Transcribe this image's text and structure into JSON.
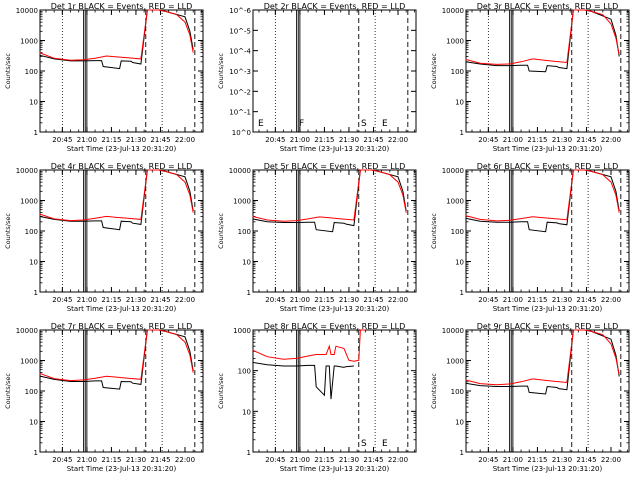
{
  "chart_data": [
    {
      "type": "line",
      "title": "Det 1r BLACK = Events, RED = LLD",
      "xlabel": "Start Time (23-Jul-13 20:31:20)",
      "ylabel": "Counts/sec",
      "scale": "log",
      "ylim": [
        1,
        10000
      ],
      "y_ticks": [
        "1",
        "10",
        "100",
        "1000",
        "10000"
      ],
      "x_ticks": [
        "20:45",
        "21:00",
        "21:15",
        "21:30",
        "21:45",
        "22:00"
      ],
      "markers": [],
      "series": [
        {
          "color": "#000000",
          "x": [
            "20:31",
            "20:40",
            "20:50",
            "20:58",
            "21:05",
            "21:09",
            "21:10",
            "21:20",
            "21:21",
            "21:27",
            "21:28",
            "21:33",
            "21:37",
            "21:40",
            "21:44",
            "21:48",
            "22:00",
            "22:03",
            "22:05"
          ],
          "y": [
            330,
            250,
            215,
            215,
            220,
            220,
            140,
            120,
            215,
            210,
            190,
            170,
            10000,
            12000,
            12000,
            9000,
            6000,
            2000,
            500
          ]
        },
        {
          "color": "#ff0000",
          "x": [
            "20:31",
            "20:40",
            "20:50",
            "20:58",
            "21:05",
            "21:12",
            "21:18",
            "21:25",
            "21:33",
            "21:37",
            "21:40",
            "21:44",
            "21:48",
            "21:55",
            "22:00",
            "22:03",
            "22:05"
          ],
          "y": [
            400,
            260,
            225,
            235,
            260,
            310,
            290,
            270,
            250,
            10000,
            12000,
            12000,
            9000,
            7000,
            4000,
            1500,
            400
          ]
        }
      ]
    },
    {
      "type": "line",
      "title": "Det 2r BLACK = Events, RED = LLD",
      "xlabel": "Start Time (23-Jul-13 20:31:20)",
      "ylabel": "Counts/sec",
      "scale": "log",
      "ylim": [
        1,
        1e-06
      ],
      "y_ticks": [
        "10^0",
        "10^-1",
        "10^-2",
        "10^-3",
        "10^-4",
        "10^-5",
        "10^-6"
      ],
      "x_ticks": [
        "20:45",
        "21:00",
        "21:15",
        "21:30",
        "21:45",
        "22:00"
      ],
      "markers": [
        "E",
        "F",
        "S",
        "E"
      ],
      "series": []
    },
    {
      "type": "line",
      "title": "Det 3r BLACK = Events, RED = LLD",
      "xlabel": "Start Time (23-Jul-13 20:31:20)",
      "ylabel": "Counts/sec",
      "scale": "log",
      "ylim": [
        1,
        10000
      ],
      "y_ticks": [
        "1",
        "10",
        "100",
        "1000",
        "10000"
      ],
      "x_ticks": [
        "20:45",
        "21:00",
        "21:15",
        "21:30",
        "21:45",
        "22:00"
      ],
      "markers": [],
      "series": [
        {
          "color": "#000000",
          "x": [
            "20:31",
            "20:40",
            "20:50",
            "20:58",
            "21:05",
            "21:09",
            "21:10",
            "21:20",
            "21:21",
            "21:27",
            "21:28",
            "21:33",
            "21:37",
            "21:40",
            "21:44",
            "21:48",
            "22:00",
            "22:03",
            "22:05"
          ],
          "y": [
            200,
            170,
            150,
            150,
            155,
            155,
            100,
            95,
            150,
            140,
            130,
            120,
            10000,
            12000,
            12000,
            9000,
            5000,
            1500,
            300
          ]
        },
        {
          "color": "#ff0000",
          "x": [
            "20:31",
            "20:40",
            "20:50",
            "20:58",
            "21:05",
            "21:12",
            "21:18",
            "21:25",
            "21:33",
            "21:37",
            "21:40",
            "21:44",
            "21:48",
            "21:55",
            "22:00",
            "22:03",
            "22:05"
          ],
          "y": [
            240,
            180,
            165,
            170,
            200,
            250,
            230,
            210,
            190,
            10000,
            12000,
            12000,
            9000,
            7000,
            3500,
            1200,
            350
          ]
        }
      ]
    },
    {
      "type": "line",
      "title": "Det 4r BLACK = Events, RED = LLD",
      "xlabel": "Start Time (23-Jul-13 20:31:20)",
      "ylabel": "Counts/sec",
      "scale": "log",
      "ylim": [
        1,
        10000
      ],
      "y_ticks": [
        "1",
        "10",
        "100",
        "1000",
        "10000"
      ],
      "x_ticks": [
        "20:45",
        "21:00",
        "21:15",
        "21:30",
        "21:45",
        "22:00"
      ],
      "markers": [],
      "series": [
        {
          "color": "#000000",
          "x": [
            "20:31",
            "20:40",
            "20:50",
            "20:58",
            "21:05",
            "21:09",
            "21:10",
            "21:20",
            "21:21",
            "21:27",
            "21:28",
            "21:33",
            "21:37",
            "21:40",
            "21:44",
            "21:48",
            "22:00",
            "22:03",
            "22:05"
          ],
          "y": [
            300,
            240,
            210,
            210,
            215,
            215,
            130,
            110,
            210,
            200,
            180,
            165,
            10000,
            12000,
            12000,
            9000,
            6000,
            2000,
            450
          ]
        },
        {
          "color": "#ff0000",
          "x": [
            "20:31",
            "20:40",
            "20:50",
            "20:58",
            "21:05",
            "21:12",
            "21:18",
            "21:25",
            "21:33",
            "21:37",
            "21:40",
            "21:44",
            "21:48",
            "21:55",
            "22:00",
            "22:03",
            "22:05"
          ],
          "y": [
            360,
            250,
            220,
            230,
            260,
            300,
            280,
            260,
            240,
            10000,
            12000,
            12000,
            9000,
            7000,
            4000,
            1500,
            400
          ]
        }
      ]
    },
    {
      "type": "line",
      "title": "Det 5r BLACK = Events, RED = LLD",
      "xlabel": "Start Time (23-Jul-13 20:31:20)",
      "ylabel": "Counts/sec",
      "scale": "log",
      "ylim": [
        1,
        10000
      ],
      "y_ticks": [
        "1",
        "10",
        "100",
        "1000",
        "10000"
      ],
      "x_ticks": [
        "20:45",
        "21:00",
        "21:15",
        "21:30",
        "21:45",
        "22:00"
      ],
      "markers": [],
      "series": [
        {
          "color": "#000000",
          "x": [
            "20:31",
            "20:40",
            "20:50",
            "20:58",
            "21:05",
            "21:09",
            "21:10",
            "21:20",
            "21:21",
            "21:27",
            "21:28",
            "21:33",
            "21:37",
            "21:40",
            "21:44",
            "21:48",
            "22:00",
            "22:03",
            "22:05"
          ],
          "y": [
            250,
            200,
            190,
            190,
            195,
            195,
            110,
            95,
            190,
            180,
            170,
            150,
            10000,
            12000,
            12000,
            9000,
            6000,
            2000,
            450
          ]
        },
        {
          "color": "#ff0000",
          "x": [
            "20:31",
            "20:40",
            "20:50",
            "20:58",
            "21:05",
            "21:12",
            "21:18",
            "21:25",
            "21:33",
            "21:37",
            "21:40",
            "21:44",
            "21:48",
            "21:55",
            "22:00",
            "22:03",
            "22:05"
          ],
          "y": [
            300,
            230,
            210,
            220,
            250,
            290,
            270,
            250,
            230,
            10000,
            12000,
            12000,
            9000,
            7000,
            4000,
            1500,
            400
          ]
        }
      ]
    },
    {
      "type": "line",
      "title": "Det 6r BLACK = Events, RED = LLD",
      "xlabel": "Start Time (23-Jul-13 20:31:20)",
      "ylabel": "Counts/sec",
      "scale": "log",
      "ylim": [
        1,
        10000
      ],
      "y_ticks": [
        "1",
        "10",
        "100",
        "1000",
        "10000"
      ],
      "x_ticks": [
        "20:45",
        "21:00",
        "21:15",
        "21:30",
        "21:45",
        "22:00"
      ],
      "markers": [],
      "series": [
        {
          "color": "#000000",
          "x": [
            "20:31",
            "20:40",
            "20:50",
            "20:58",
            "21:05",
            "21:09",
            "21:10",
            "21:20",
            "21:21",
            "21:27",
            "21:28",
            "21:33",
            "21:37",
            "21:40",
            "21:44",
            "21:48",
            "22:00",
            "22:03",
            "22:05"
          ],
          "y": [
            260,
            210,
            195,
            195,
            200,
            200,
            110,
            95,
            195,
            185,
            175,
            160,
            10000,
            12000,
            12000,
            9000,
            6000,
            2000,
            450
          ]
        },
        {
          "color": "#ff0000",
          "x": [
            "20:31",
            "20:40",
            "20:50",
            "20:58",
            "21:05",
            "21:12",
            "21:18",
            "21:25",
            "21:33",
            "21:37",
            "21:40",
            "21:44",
            "21:48",
            "21:55",
            "22:00",
            "22:03",
            "22:05"
          ],
          "y": [
            320,
            240,
            215,
            225,
            255,
            295,
            275,
            255,
            235,
            10000,
            12000,
            12000,
            9000,
            7000,
            4000,
            1500,
            400
          ]
        }
      ]
    },
    {
      "type": "line",
      "title": "Det 7r BLACK = Events, RED = LLD",
      "xlabel": "Start Time (23-Jul-13 20:31:20)",
      "ylabel": "Counts/sec",
      "scale": "log",
      "ylim": [
        1,
        10000
      ],
      "y_ticks": [
        "1",
        "10",
        "100",
        "1000",
        "10000"
      ],
      "x_ticks": [
        "20:45",
        "21:00",
        "21:15",
        "21:30",
        "21:45",
        "22:00"
      ],
      "markers": [],
      "series": [
        {
          "color": "#000000",
          "x": [
            "20:31",
            "20:40",
            "20:50",
            "20:58",
            "21:05",
            "21:09",
            "21:10",
            "21:20",
            "21:21",
            "21:27",
            "21:28",
            "21:33",
            "21:37",
            "21:40",
            "21:44",
            "21:48",
            "22:00",
            "22:03",
            "22:05"
          ],
          "y": [
            310,
            240,
            205,
            205,
            215,
            215,
            130,
            115,
            205,
            200,
            180,
            165,
            10000,
            12000,
            12000,
            9000,
            6000,
            2000,
            450
          ]
        },
        {
          "color": "#ff0000",
          "x": [
            "20:31",
            "20:40",
            "20:50",
            "20:58",
            "21:05",
            "21:12",
            "21:18",
            "21:25",
            "21:33",
            "21:37",
            "21:40",
            "21:44",
            "21:48",
            "21:55",
            "22:00",
            "22:03",
            "22:05"
          ],
          "y": [
            380,
            255,
            220,
            232,
            262,
            305,
            285,
            262,
            242,
            10000,
            12000,
            12000,
            9000,
            7000,
            4000,
            1500,
            400
          ]
        }
      ]
    },
    {
      "type": "line",
      "title": "Det 8r BLACK = Events, RED = LLD",
      "xlabel": "Start Time (23-Jul-13 20:31:20)",
      "ylabel": "Counts/sec",
      "scale": "log",
      "ylim": [
        1,
        1000
      ],
      "y_ticks": [
        "1",
        "10",
        "100",
        "1000"
      ],
      "x_ticks": [
        "20:45",
        "21:00",
        "21:15",
        "21:30",
        "21:45",
        "22:00"
      ],
      "markers": [
        "S",
        "E"
      ],
      "series": [
        {
          "color": "#000000",
          "x": [
            "20:31",
            "20:40",
            "20:50",
            "20:58",
            "21:05",
            "21:09",
            "21:10",
            "21:15",
            "21:16",
            "21:18",
            "21:19",
            "21:21",
            "21:22",
            "21:27",
            "21:28",
            "21:33"
          ],
          "y": [
            160,
            140,
            130,
            130,
            135,
            135,
            40,
            25,
            130,
            130,
            20,
            130,
            130,
            120,
            125,
            130
          ]
        },
        {
          "color": "#ff0000",
          "x": [
            "20:31",
            "20:40",
            "20:50",
            "20:58",
            "21:05",
            "21:10",
            "21:16",
            "21:18",
            "21:19",
            "21:21",
            "21:22",
            "21:27",
            "21:30",
            "21:33",
            "21:36",
            "21:37",
            "21:40"
          ],
          "y": [
            320,
            220,
            190,
            200,
            230,
            250,
            250,
            400,
            250,
            250,
            400,
            350,
            180,
            170,
            180,
            1000,
            1200
          ]
        }
      ]
    },
    {
      "type": "line",
      "title": "Det 9r BLACK = Events, RED = LLD",
      "xlabel": "Start Time (23-Jul-13 20:31:20)",
      "ylabel": "Counts/sec",
      "scale": "log",
      "ylim": [
        1,
        10000
      ],
      "y_ticks": [
        "1",
        "10",
        "100",
        "1000",
        "10000"
      ],
      "x_ticks": [
        "20:45",
        "21:00",
        "21:15",
        "21:30",
        "21:45",
        "22:00"
      ],
      "markers": [],
      "series": [
        {
          "color": "#000000",
          "x": [
            "20:31",
            "20:40",
            "20:50",
            "20:58",
            "21:05",
            "21:09",
            "21:10",
            "21:20",
            "21:21",
            "21:27",
            "21:28",
            "21:33",
            "21:37",
            "21:40",
            "21:44",
            "21:48",
            "22:00",
            "22:03",
            "22:05"
          ],
          "y": [
            180,
            150,
            140,
            140,
            145,
            145,
            90,
            80,
            140,
            130,
            120,
            110,
            10000,
            12000,
            12000,
            9000,
            5000,
            1500,
            300
          ]
        },
        {
          "color": "#ff0000",
          "x": [
            "20:31",
            "20:40",
            "20:50",
            "20:58",
            "21:05",
            "21:12",
            "21:18",
            "21:25",
            "21:33",
            "21:37",
            "21:40",
            "21:44",
            "21:48",
            "21:55",
            "22:00",
            "22:03",
            "22:05"
          ],
          "y": [
            230,
            175,
            160,
            170,
            200,
            250,
            230,
            210,
            190,
            10000,
            12000,
            12000,
            9000,
            7000,
            3500,
            1200,
            350
          ]
        }
      ]
    }
  ]
}
